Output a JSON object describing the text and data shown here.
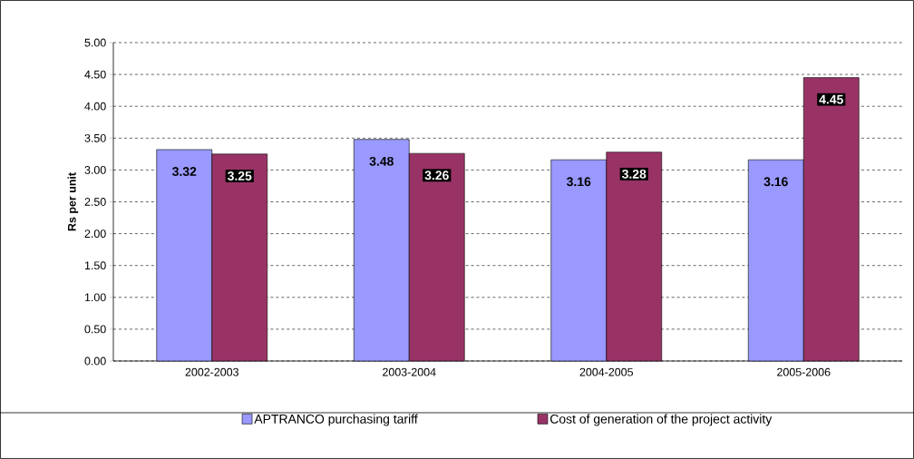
{
  "chart_data": {
    "type": "bar",
    "ylabel": "Rs per unit",
    "categories": [
      "2002-2003",
      "2003-2004",
      "2004-2005",
      "2005-2006"
    ],
    "series": [
      {
        "name": "APTRANCO purchasing tariff",
        "color": "#9999ff",
        "values": [
          3.32,
          3.48,
          3.16,
          3.16
        ]
      },
      {
        "name": "Cost of generation of the project activity",
        "color": "#993366",
        "values": [
          3.25,
          3.26,
          3.28,
          4.45
        ]
      }
    ],
    "ylim": [
      0,
      5
    ],
    "yticks": [
      {
        "value": 0,
        "label": "0.00"
      },
      {
        "value": 0.5,
        "label": "0.50"
      },
      {
        "value": 1,
        "label": "1.00"
      },
      {
        "value": 1.5,
        "label": "1.50"
      },
      {
        "value": 2,
        "label": "2.00"
      },
      {
        "value": 2.5,
        "label": "2.50"
      },
      {
        "value": 3,
        "label": "3.00"
      },
      {
        "value": 3.5,
        "label": "3.50"
      },
      {
        "value": 4,
        "label": "4.00"
      },
      {
        "value": 4.5,
        "label": "4.50"
      },
      {
        "value": 5,
        "label": "5.00"
      }
    ],
    "grid": "y",
    "legend": "bottom",
    "data_labels": true
  }
}
